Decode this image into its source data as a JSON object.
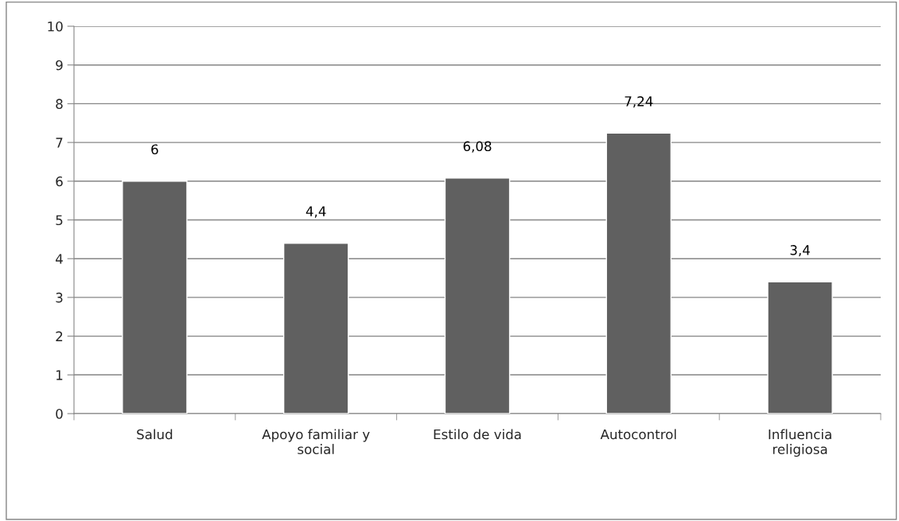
{
  "chart_data": {
    "type": "bar",
    "categories": [
      "Salud",
      "Apoyo familiar y social",
      "Estilo de vida",
      "Autocontrol",
      "Influencia religiosa"
    ],
    "values": [
      6,
      4.4,
      6.08,
      7.24,
      3.4
    ],
    "value_labels": [
      "6",
      "4,4",
      "6,08",
      "7,24",
      "3,4"
    ],
    "color": "#606060",
    "ylim": [
      0,
      10
    ],
    "yticks": [
      0,
      1,
      2,
      3,
      4,
      5,
      6,
      7,
      8,
      9,
      10
    ],
    "grid": "y",
    "legend": false
  }
}
